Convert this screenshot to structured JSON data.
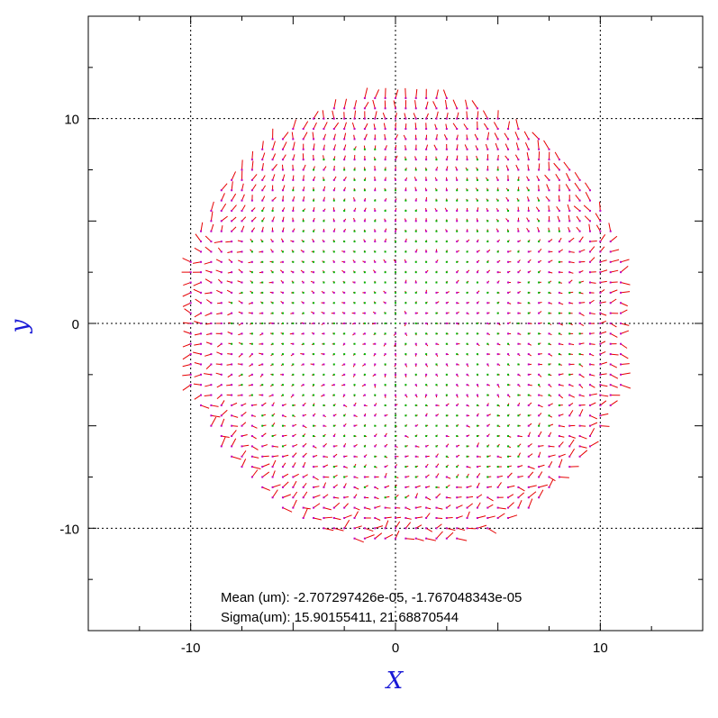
{
  "chart_data": {
    "type": "vector-field",
    "xlabel": "X",
    "ylabel": "y",
    "xlim": [
      -15,
      15
    ],
    "ylim": [
      -15,
      15
    ],
    "x_ticks": [
      -10,
      0,
      10
    ],
    "y_ticks": [
      -10,
      0,
      10
    ],
    "x_tick_labels": [
      "-10",
      "0",
      "10"
    ],
    "y_tick_labels": [
      "-10",
      "0",
      "10"
    ],
    "grid": true,
    "grid_style": "dotted",
    "field": {
      "center": [
        0.5,
        0.2
      ],
      "radius": 11.0,
      "grid_step": 0.5,
      "description_series": [
        {
          "name": "vectors",
          "color": "#e60000"
        },
        {
          "name": "points",
          "color": "#c000c0"
        },
        {
          "name": "low-residual points",
          "color": "#00b000"
        }
      ]
    },
    "annotations": {
      "mean_text": "Mean (um): -2.707297426e-05, -1.767048343e-05",
      "sigma_text": "Sigma(um): 15.90155411, 21.68870544"
    },
    "colors": {
      "axis_title": "#1a1ad6",
      "vector": "#e60000",
      "point": "#c000c0",
      "point_low": "#00b000"
    }
  }
}
